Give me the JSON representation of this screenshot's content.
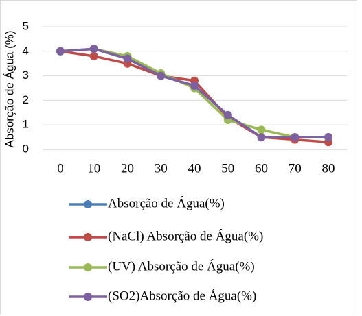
{
  "chart_data": {
    "type": "line",
    "y_label": "Absorção de Água (%)",
    "categories": [
      "0",
      "10",
      "20",
      "30",
      "40",
      "50",
      "60",
      "70",
      "80"
    ],
    "series": [
      {
        "name": "Absorção de Água(%)",
        "color": "#4a7ebb",
        "values": [
          4,
          4.1,
          3.7,
          3.0,
          2.6,
          1.4,
          0.5,
          0.5,
          0.5
        ]
      },
      {
        "name": "(NaCl) Absorção de Água(%)",
        "color": "#be4b48",
        "values": [
          4,
          3.8,
          3.5,
          3.0,
          2.8,
          1.3,
          0.5,
          0.4,
          0.3
        ]
      },
      {
        "name": "(UV) Absorção de Água(%)",
        "color": "#98b954",
        "values": [
          4,
          4.1,
          3.8,
          3.1,
          2.5,
          1.2,
          0.8,
          0.5,
          0.5
        ]
      },
      {
        "name": "(SO2)Absorção de Água(%)",
        "color": "#7d60a0",
        "values": [
          4,
          4.1,
          3.7,
          3.0,
          2.6,
          1.4,
          0.5,
          0.5,
          0.5
        ]
      }
    ],
    "ylim": [
      0,
      5
    ],
    "yticks": [
      0,
      1,
      2,
      3,
      4,
      5
    ],
    "grid": true,
    "legend": "bottom"
  }
}
